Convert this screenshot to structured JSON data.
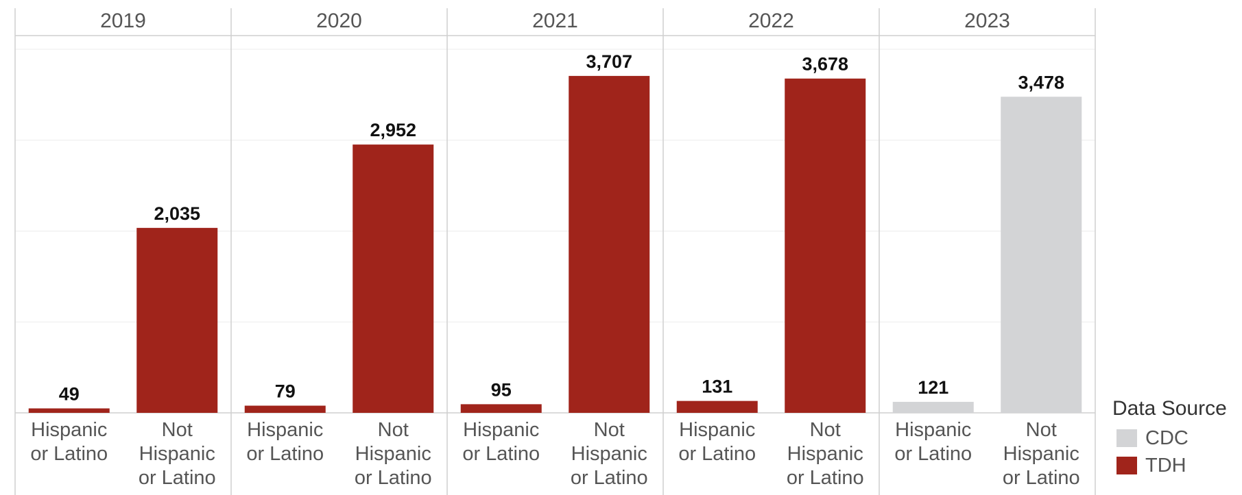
{
  "chart_data": {
    "type": "bar",
    "years": [
      "2019",
      "2020",
      "2021",
      "2022",
      "2023"
    ],
    "categories": [
      "Hispanic or Latino",
      "Not Hispanic or Latino"
    ],
    "category_label_lines": [
      [
        "Hispanic",
        "or Latino"
      ],
      [
        "Not",
        "Hispanic",
        "or Latino"
      ]
    ],
    "values": [
      [
        49,
        2035
      ],
      [
        79,
        2952
      ],
      [
        95,
        3707
      ],
      [
        131,
        3678
      ],
      [
        121,
        3478
      ]
    ],
    "value_labels": [
      [
        "49",
        "2,035"
      ],
      [
        "79",
        "2,952"
      ],
      [
        "95",
        "3,707"
      ],
      [
        "131",
        "3,678"
      ],
      [
        "121",
        "3,478"
      ]
    ],
    "data_source_by_year": [
      "TDH",
      "TDH",
      "TDH",
      "TDH",
      "CDC"
    ],
    "ylim": [
      0,
      4000
    ],
    "grid": true,
    "legend": {
      "title": "Data Source",
      "placement": "bottom-right",
      "items": [
        {
          "label": "CDC",
          "color": "#d3d4d6"
        },
        {
          "label": "TDH",
          "color": "#a0241b"
        }
      ]
    }
  }
}
